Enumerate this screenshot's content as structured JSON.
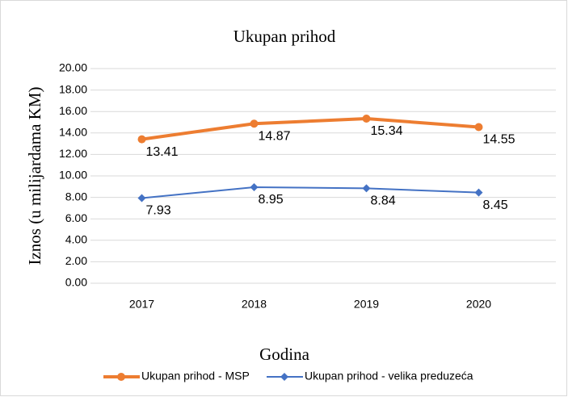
{
  "chart_data": {
    "type": "line",
    "title": "Ukupan prihod",
    "x_label": "Godina",
    "y_label": "Iznos (u milijardama KM)",
    "categories": [
      "2017",
      "2018",
      "2019",
      "2020"
    ],
    "series": [
      {
        "name": "Ukupan prihod - MSP",
        "color": "#ed7d31",
        "marker": "circle",
        "values": [
          13.41,
          14.87,
          15.34,
          14.55
        ]
      },
      {
        "name": "Ukupan prihod - velika preduzeća",
        "color": "#4472c4",
        "marker": "diamond",
        "values": [
          7.93,
          8.95,
          8.84,
          8.45
        ]
      }
    ],
    "ylim": [
      0,
      20
    ],
    "yticks": [
      {
        "value": 0,
        "label": "0.00"
      },
      {
        "value": 2,
        "label": "2.00"
      },
      {
        "value": 4,
        "label": "4.00"
      },
      {
        "value": 6,
        "label": "6.00"
      },
      {
        "value": 8,
        "label": "8.00"
      },
      {
        "value": 10,
        "label": "10.00"
      },
      {
        "value": 12,
        "label": "12.00"
      },
      {
        "value": 14,
        "label": "14.00"
      },
      {
        "value": 16,
        "label": "16.00"
      },
      {
        "value": 18,
        "label": "18.00"
      },
      {
        "value": 20,
        "label": "20.00"
      }
    ],
    "grid": true,
    "legend": "bottom"
  }
}
